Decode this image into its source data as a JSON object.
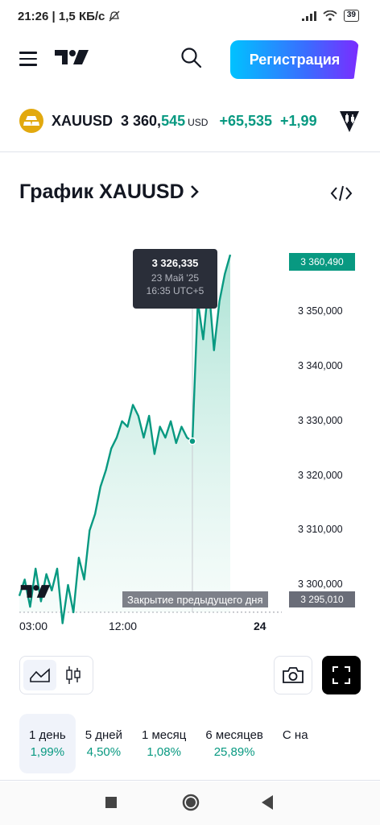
{
  "status_bar": {
    "time": "21:26",
    "network_speed": "1,5 КБ/с",
    "battery": "39"
  },
  "header": {
    "register_label": "Регистрация"
  },
  "symbol": {
    "ticker": "XAUUSD",
    "price_integer": "3 360,",
    "price_decimal": "545",
    "currency": "USD",
    "change": "+65,535",
    "change_percent": "+1,99"
  },
  "chart_title": "График XAUUSD",
  "chart_data": {
    "type": "area",
    "x": [
      "01:00",
      "01:30",
      "02:00",
      "02:30",
      "03:00",
      "03:30",
      "04:00",
      "04:30",
      "05:00",
      "05:30",
      "06:00",
      "06:30",
      "07:00",
      "07:30",
      "08:00",
      "08:30",
      "09:00",
      "09:30",
      "10:00",
      "10:30",
      "11:00",
      "11:30",
      "12:00",
      "12:30",
      "13:00",
      "13:30",
      "14:00",
      "14:30",
      "15:00",
      "15:30",
      "16:00",
      "16:30",
      "16:35",
      "17:00",
      "17:30",
      "18:00",
      "18:30",
      "19:00",
      "19:30",
      "20:00"
    ],
    "series": [
      {
        "values": [
          3298,
          3301,
          3296,
          3303,
          3297,
          3302,
          3299,
          3303,
          3293,
          3300,
          3295,
          3305,
          3301,
          3310,
          3313,
          3318,
          3321,
          3325,
          3327,
          3330,
          3329,
          3333,
          3331,
          3327,
          3331,
          3324,
          3329,
          3327,
          3330,
          3326,
          3329,
          3327,
          3326.335,
          3352,
          3345,
          3355,
          3343,
          3352,
          3357,
          3360.49
        ]
      }
    ],
    "ylim": [
      3295,
      3362
    ],
    "y_ticks": [
      "3 300,000",
      "3 310,000",
      "3 320,000",
      "3 330,000",
      "3 340,000",
      "3 350,000"
    ],
    "x_ticks": [
      "03:00",
      "12:00",
      "24"
    ],
    "current_price": "3 360,490",
    "previous_close_label": "Закрытие предыдущего дня",
    "previous_close": "3 295,010",
    "previous_close_value": 3295.01,
    "crosshair_x": "16:35",
    "tooltip": {
      "price": "3 326,335",
      "date": "23 Май '25",
      "time": "16:35 UTC+5"
    },
    "line_color": "#089981",
    "fill_color": "#d4f1ea"
  },
  "periods": [
    {
      "label": "1 день",
      "value": "1,99%"
    },
    {
      "label": "5 дней",
      "value": "4,50%"
    },
    {
      "label": "1 месяц",
      "value": "1,08%"
    },
    {
      "label": "6 месяцев",
      "value": "25,89%"
    },
    {
      "label": "С на",
      "value": ""
    }
  ]
}
